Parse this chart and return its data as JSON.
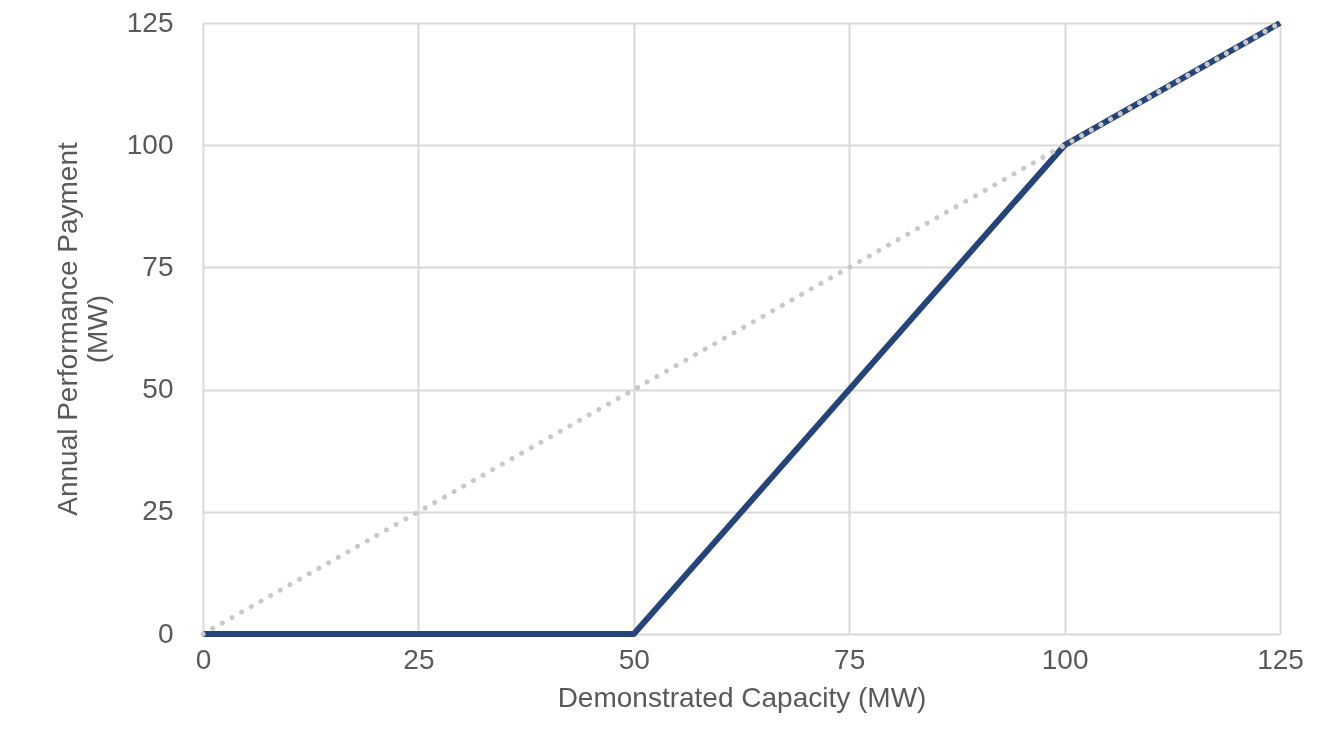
{
  "chart_data": {
    "type": "line",
    "xlabel": "Demonstrated Capacity (MW)",
    "ylabel": "Annual Performance Payment (MW)",
    "xlim": [
      0,
      125
    ],
    "xticks": [
      0,
      25,
      50,
      75,
      100,
      125
    ],
    "ylim": [
      0,
      125
    ],
    "yticks": [
      0,
      25,
      50,
      75,
      100,
      125
    ],
    "grid": true,
    "marker": "none",
    "series": [
      {
        "color": "#264478",
        "line_style": "solid",
        "x": [
          0,
          50,
          100,
          125
        ],
        "values": [
          0,
          0,
          100,
          125
        ]
      },
      {
        "color": "#c9c9c9",
        "line_style": "dotted",
        "x": [
          0,
          125
        ],
        "values": [
          0,
          125
        ]
      }
    ]
  }
}
